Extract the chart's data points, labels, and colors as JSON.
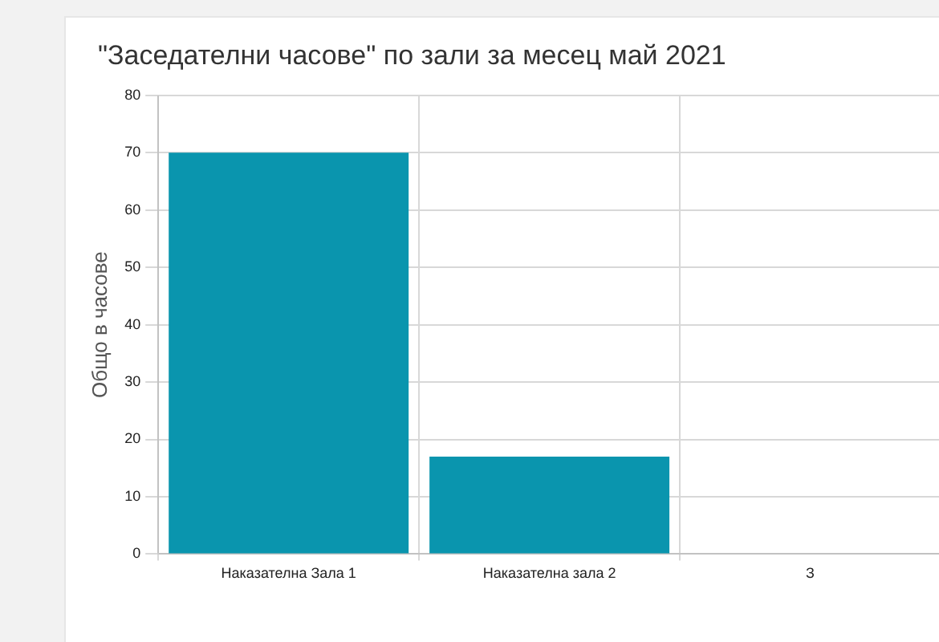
{
  "chart_data": {
    "type": "bar",
    "title": "\"Заседателни часове\" по зали за месец май 2021",
    "ylabel": "Общо в часове",
    "categories": [
      "Наказателна Зала 1",
      "Наказателна зала 2",
      "З"
    ],
    "values": [
      70,
      17,
      null
    ],
    "color": "#0a95ae",
    "ylim": [
      0,
      80
    ],
    "yticks": [
      0,
      10,
      20,
      30,
      40,
      50,
      60,
      70,
      80
    ],
    "grid": true
  }
}
